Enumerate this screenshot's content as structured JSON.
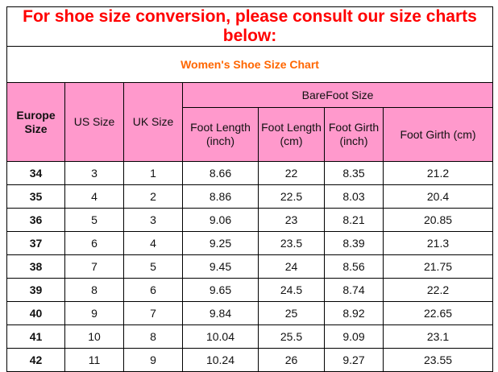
{
  "title": "For shoe size conversion, please consult our size charts below:",
  "subtitle": "Women's Shoe Size Chart",
  "colors": {
    "header_bg": "#ff99cc",
    "title": "#ff0000",
    "subtitle": "#ff6600"
  },
  "headers": {
    "europe": "Europe Size",
    "us": "US Size",
    "uk": "UK Size",
    "barefoot": "BareFoot Size",
    "foot_length_inch": "Foot Length (inch)",
    "foot_length_cm": "Foot Length (cm)",
    "foot_girth_inch": "Foot Girth (inch)",
    "foot_girth_cm": "Foot Girth (cm)"
  },
  "rows": [
    [
      "34",
      "3",
      "1",
      "8.66",
      "22",
      "8.35",
      "21.2"
    ],
    [
      "35",
      "4",
      "2",
      "8.86",
      "22.5",
      "8.03",
      "20.4"
    ],
    [
      "36",
      "5",
      "3",
      "9.06",
      "23",
      "8.21",
      "20.85"
    ],
    [
      "37",
      "6",
      "4",
      "9.25",
      "23.5",
      "8.39",
      "21.3"
    ],
    [
      "38",
      "7",
      "5",
      "9.45",
      "24",
      "8.56",
      "21.75"
    ],
    [
      "39",
      "8",
      "6",
      "9.65",
      "24.5",
      "8.74",
      "22.2"
    ],
    [
      "40",
      "9",
      "7",
      "9.84",
      "25",
      "8.92",
      "22.65"
    ],
    [
      "41",
      "10",
      "8",
      "10.04",
      "25.5",
      "9.09",
      "23.1"
    ],
    [
      "42",
      "11",
      "9",
      "10.24",
      "26",
      "9.27",
      "23.55"
    ]
  ]
}
